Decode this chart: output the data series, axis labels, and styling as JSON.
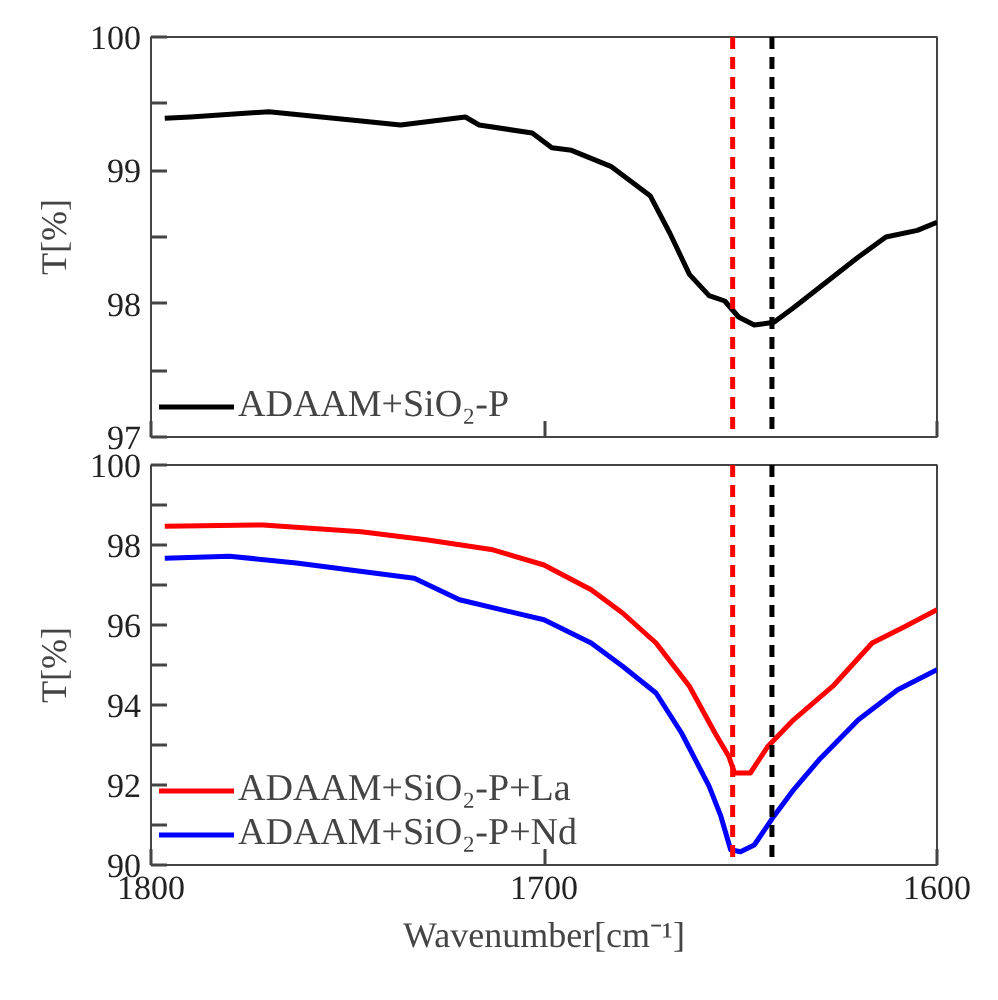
{
  "chart_data": [
    {
      "type": "line",
      "ylabel": "T[%]",
      "series": [
        {
          "name": "ADAAM+SiO₂-P",
          "color": "#000000",
          "x": [
            1796.5,
            1790,
            1770,
            1746.5,
            1736.5,
            1720,
            1716.5,
            1703,
            1698,
            1693,
            1683,
            1673,
            1668,
            1663,
            1658,
            1654,
            1650.5,
            1646.5,
            1641.5,
            1636.5,
            1630,
            1620,
            1613,
            1605,
            1600
          ],
          "values": [
            99.39,
            99.4,
            99.44,
            99.37,
            99.34,
            99.4,
            99.34,
            99.28,
            99.17,
            99.15,
            99.03,
            98.81,
            98.53,
            98.22,
            98.06,
            98.02,
            97.9,
            97.84,
            97.86,
            97.97,
            98.12,
            98.35,
            98.5,
            98.55,
            98.61
          ]
        }
      ],
      "xlim": [
        1800,
        1600
      ],
      "xticks": [
        1800,
        1700,
        1600
      ],
      "ylim": [
        97,
        100
      ],
      "yticks": [
        97,
        {
          "value": 97.5,
          "label": null
        },
        98,
        {
          "value": 98.5,
          "label": null
        },
        99,
        {
          "value": 99.5,
          "label": null
        },
        100
      ],
      "tick_labels": "y",
      "grid": false,
      "legend": "bottom left",
      "line_style": "solid",
      "marker": "none",
      "ref_lines": [
        {
          "axis": "x",
          "value": 1652,
          "color": "#ff0000",
          "line_style": "dashed"
        },
        {
          "axis": "x",
          "value": 1642,
          "color": "#000000",
          "line_style": "dashed"
        }
      ]
    },
    {
      "type": "line",
      "xlabel": "Wavenumber[cm⁻¹]",
      "ylabel": "T[%]",
      "series": [
        {
          "name": "ADAAM+SiO₂-P+La",
          "color": "#ff0000",
          "x": [
            1796.5,
            1771.5,
            1746.5,
            1730,
            1713,
            1700,
            1688,
            1680,
            1671.5,
            1663,
            1656.5,
            1653,
            1651.5,
            1647.5,
            1643,
            1636.5,
            1626.5,
            1616.5,
            1608,
            1600
          ],
          "values": [
            98.47,
            98.5,
            98.33,
            98.13,
            97.88,
            97.5,
            96.88,
            96.3,
            95.55,
            94.47,
            93.3,
            92.72,
            92.3,
            92.3,
            92.97,
            93.63,
            94.47,
            95.55,
            95.97,
            96.38
          ]
        },
        {
          "name": "ADAAM+SiO₂-P+Nd",
          "color": "#0000ff",
          "x": [
            1796.5,
            1780,
            1763,
            1733,
            1721.5,
            1700,
            1688,
            1680,
            1671.5,
            1665,
            1658,
            1655,
            1652.5,
            1650,
            1646.5,
            1641.5,
            1636.5,
            1630,
            1620,
            1610,
            1600
          ],
          "values": [
            97.67,
            97.72,
            97.55,
            97.17,
            96.63,
            96.13,
            95.55,
            94.97,
            94.3,
            93.3,
            91.97,
            91.22,
            90.38,
            90.33,
            90.5,
            91.22,
            91.88,
            92.63,
            93.63,
            94.38,
            94.88
          ]
        }
      ],
      "xlim": [
        1800,
        1600
      ],
      "xticks": [
        1800,
        1700,
        1600
      ],
      "ylim": [
        90,
        100
      ],
      "yticks": [
        90,
        {
          "value": 91,
          "label": null
        },
        92,
        {
          "value": 93,
          "label": null
        },
        94,
        {
          "value": 95,
          "label": null
        },
        96,
        {
          "value": 97,
          "label": null
        },
        98,
        {
          "value": 99,
          "label": null
        },
        100
      ],
      "grid": false,
      "legend": "bottom left",
      "line_style": "solid",
      "marker": "none",
      "ref_lines": [
        {
          "axis": "x",
          "value": 1652,
          "color": "#ff0000",
          "line_style": "dashed"
        },
        {
          "axis": "x",
          "value": 1642,
          "color": "#000000",
          "line_style": "dashed"
        }
      ]
    }
  ]
}
